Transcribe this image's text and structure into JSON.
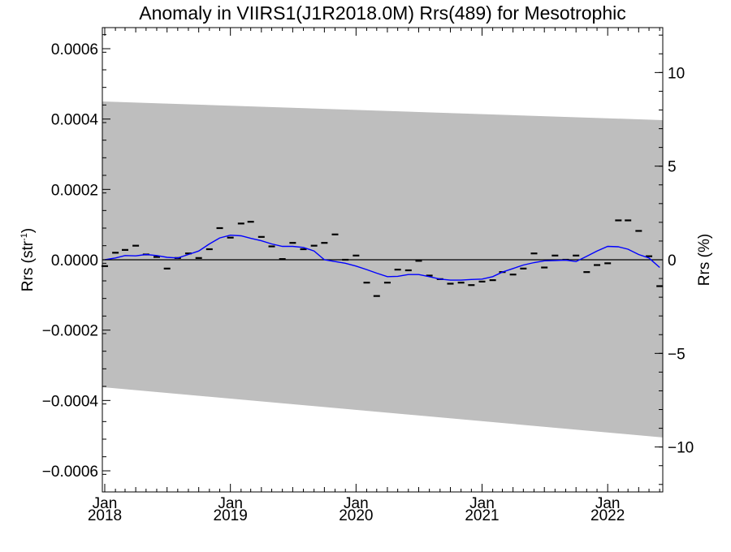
{
  "chart_data": {
    "type": "line",
    "title": "Anomaly in VIIRS1(J1R2018.0M) Rrs(489) for Mesotrophic",
    "ylabel_left": {
      "main": "Rrs (str",
      "sup": "-1",
      "close": ")"
    },
    "ylabel_right": "Rrs (%)",
    "xlim": [
      "2017-12-25",
      "2022-06-10"
    ],
    "ylim": [
      -0.00066,
      0.00066
    ],
    "y2lim": [
      -12.4,
      12.4
    ],
    "y_ticks": [
      {
        "value": 0.0006,
        "label": "0.0006"
      },
      {
        "value": 0.0004,
        "label": "0.0004"
      },
      {
        "value": 0.0002,
        "label": "0.0002"
      },
      {
        "value": 0.0,
        "label": "0.0000"
      },
      {
        "value": -0.0002,
        "label": "−0.0002"
      },
      {
        "value": -0.0004,
        "label": "−0.0004"
      },
      {
        "value": -0.0006,
        "label": "−0.0006"
      }
    ],
    "y2_ticks": [
      {
        "value": 10,
        "label": "10"
      },
      {
        "value": 5,
        "label": "5"
      },
      {
        "value": 0,
        "label": "0"
      },
      {
        "value": -5,
        "label": "−5"
      },
      {
        "value": -10,
        "label": "−10"
      }
    ],
    "x_ticks": [
      {
        "date": "2018-01-01",
        "label": "Jan",
        "sublabel": "2018"
      },
      {
        "date": "2019-01-01",
        "label": "Jan",
        "sublabel": "2019"
      },
      {
        "date": "2020-01-01",
        "label": "Jan",
        "sublabel": "2020"
      },
      {
        "date": "2021-01-01",
        "label": "Jan",
        "sublabel": "2021"
      },
      {
        "date": "2022-01-01",
        "label": "Jan",
        "sublabel": "2022"
      }
    ],
    "grid": false,
    "uncertainty_band": {
      "color": "#bebebe",
      "upper": [
        [
          "2017-12-25",
          0.00045
        ],
        [
          "2022-06-10",
          0.000397
        ]
      ],
      "lower": [
        [
          "2017-12-25",
          -0.000362
        ],
        [
          "2022-06-10",
          -0.000505
        ]
      ]
    },
    "zero_line": {
      "y": 0.0,
      "color": "#000000"
    },
    "series": [
      {
        "kind": "monthly-anomaly-markers",
        "color": "#000000",
        "points": [
          [
            "2018-01-01",
            -1.8e-05
          ],
          [
            "2018-02-01",
            2e-05
          ],
          [
            "2018-03-01",
            2.8e-05
          ],
          [
            "2018-04-01",
            4e-05
          ],
          [
            "2018-05-01",
            1.5e-05
          ],
          [
            "2018-06-01",
            8e-06
          ],
          [
            "2018-07-01",
            -2.5e-05
          ],
          [
            "2018-08-01",
            5e-06
          ],
          [
            "2018-09-01",
            1.8e-05
          ],
          [
            "2018-10-01",
            5e-06
          ],
          [
            "2018-11-01",
            3e-05
          ],
          [
            "2018-12-01",
            9e-05
          ],
          [
            "2019-01-01",
            6.3e-05
          ],
          [
            "2019-02-01",
            0.000103
          ],
          [
            "2019-03-01",
            0.000108
          ],
          [
            "2019-04-01",
            6.5e-05
          ],
          [
            "2019-05-01",
            3.8e-05
          ],
          [
            "2019-06-01",
            2e-06
          ],
          [
            "2019-07-01",
            4.8e-05
          ],
          [
            "2019-08-01",
            3e-05
          ],
          [
            "2019-09-01",
            4e-05
          ],
          [
            "2019-10-01",
            4.8e-05
          ],
          [
            "2019-11-01",
            7.2e-05
          ],
          [
            "2019-12-01",
            0.0
          ],
          [
            "2020-01-01",
            1.2e-05
          ],
          [
            "2020-02-01",
            -6.5e-05
          ],
          [
            "2020-03-01",
            -0.000103
          ],
          [
            "2020-04-01",
            -6.5e-05
          ],
          [
            "2020-05-01",
            -2.8e-05
          ],
          [
            "2020-06-01",
            -3e-05
          ],
          [
            "2020-07-01",
            -3e-06
          ],
          [
            "2020-08-01",
            -4.5e-05
          ],
          [
            "2020-09-01",
            -5.5e-05
          ],
          [
            "2020-10-01",
            -6.8e-05
          ],
          [
            "2020-11-01",
            -6.5e-05
          ],
          [
            "2020-12-01",
            -7.2e-05
          ],
          [
            "2021-01-01",
            -6.2e-05
          ],
          [
            "2021-02-01",
            -5.8e-05
          ],
          [
            "2021-03-01",
            -3.5e-05
          ],
          [
            "2021-04-01",
            -4.2e-05
          ],
          [
            "2021-05-01",
            -2.5e-05
          ],
          [
            "2021-06-01",
            1.8e-05
          ],
          [
            "2021-07-01",
            -2.2e-05
          ],
          [
            "2021-08-01",
            1.2e-05
          ],
          [
            "2021-09-01",
            0.0
          ],
          [
            "2021-10-01",
            1.2e-05
          ],
          [
            "2021-11-01",
            -3.5e-05
          ],
          [
            "2021-12-01",
            -1.5e-05
          ],
          [
            "2022-01-01",
            -1e-05
          ],
          [
            "2022-02-01",
            0.000112
          ],
          [
            "2022-03-01",
            0.000112
          ],
          [
            "2022-04-01",
            8.2e-05
          ],
          [
            "2022-05-01",
            1e-05
          ],
          [
            "2022-06-01",
            -7.5e-05
          ]
        ]
      },
      {
        "kind": "smoothed-trend",
        "color": "#0000ff",
        "points": [
          [
            "2018-01-01",
            0.0
          ],
          [
            "2018-02-01",
            5e-06
          ],
          [
            "2018-03-01",
            1.2e-05
          ],
          [
            "2018-04-01",
            1.1e-05
          ],
          [
            "2018-05-01",
            1.5e-05
          ],
          [
            "2018-06-01",
            1.2e-05
          ],
          [
            "2018-07-01",
            7e-06
          ],
          [
            "2018-08-01",
            5e-06
          ],
          [
            "2018-09-01",
            1.5e-05
          ],
          [
            "2018-10-01",
            2.5e-05
          ],
          [
            "2018-11-01",
            4.5e-05
          ],
          [
            "2018-12-01",
            6.2e-05
          ],
          [
            "2019-01-01",
            7e-05
          ],
          [
            "2019-02-01",
            6.8e-05
          ],
          [
            "2019-03-01",
            6.1e-05
          ],
          [
            "2019-04-01",
            5.4e-05
          ],
          [
            "2019-05-01",
            4.5e-05
          ],
          [
            "2019-06-01",
            3.8e-05
          ],
          [
            "2019-07-01",
            3.8e-05
          ],
          [
            "2019-08-01",
            3.5e-05
          ],
          [
            "2019-09-01",
            2.5e-05
          ],
          [
            "2019-10-01",
            0.0
          ],
          [
            "2019-11-01",
            -5e-06
          ],
          [
            "2019-12-01",
            -1e-05
          ],
          [
            "2020-01-01",
            -1.8e-05
          ],
          [
            "2020-02-01",
            -2.8e-05
          ],
          [
            "2020-03-01",
            -3.8e-05
          ],
          [
            "2020-04-01",
            -4.8e-05
          ],
          [
            "2020-05-01",
            -4.7e-05
          ],
          [
            "2020-06-01",
            -4.2e-05
          ],
          [
            "2020-07-01",
            -4.2e-05
          ],
          [
            "2020-08-01",
            -4.8e-05
          ],
          [
            "2020-09-01",
            -5.5e-05
          ],
          [
            "2020-10-01",
            -5.8e-05
          ],
          [
            "2020-11-01",
            -5.8e-05
          ],
          [
            "2020-12-01",
            -5.6e-05
          ],
          [
            "2021-01-01",
            -5.5e-05
          ],
          [
            "2021-02-01",
            -4.8e-05
          ],
          [
            "2021-03-01",
            -3.5e-05
          ],
          [
            "2021-04-01",
            -2.5e-05
          ],
          [
            "2021-05-01",
            -1.5e-05
          ],
          [
            "2021-06-01",
            -8e-06
          ],
          [
            "2021-07-01",
            -3e-06
          ],
          [
            "2021-08-01",
            -2e-06
          ],
          [
            "2021-09-01",
            -1e-06
          ],
          [
            "2021-10-01",
            -5e-06
          ],
          [
            "2021-11-01",
            1e-05
          ],
          [
            "2021-12-01",
            2.5e-05
          ],
          [
            "2022-01-01",
            3.8e-05
          ],
          [
            "2022-02-01",
            3.7e-05
          ],
          [
            "2022-03-01",
            3e-05
          ],
          [
            "2022-04-01",
            1.5e-05
          ],
          [
            "2022-05-01",
            5e-06
          ],
          [
            "2022-06-01",
            -2.2e-05
          ]
        ]
      }
    ]
  }
}
